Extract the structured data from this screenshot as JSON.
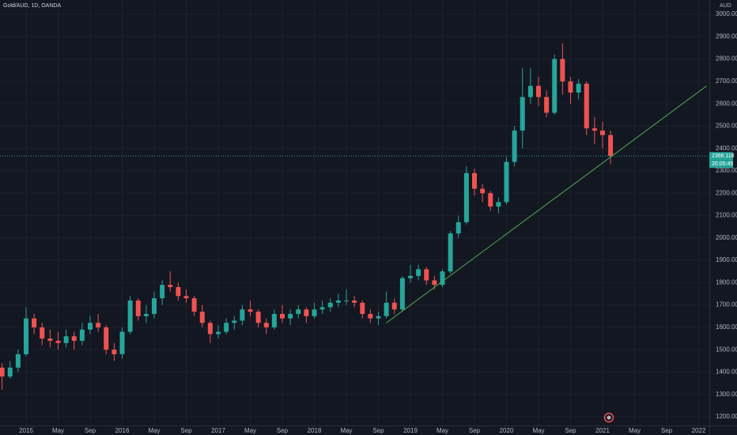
{
  "chart_data": {
    "type": "candlestick",
    "title": "Gold/AUD, 1D, OANDA",
    "currency": "AUD",
    "up_color": "#26a69a",
    "down_color": "#ef5350",
    "x": [
      "2014-10",
      "2014-11",
      "2014-12",
      "2015-01",
      "2015-02",
      "2015-03",
      "2015-04",
      "2015-05",
      "2015-06",
      "2015-07",
      "2015-08",
      "2015-09",
      "2015-10",
      "2015-11",
      "2015-12",
      "2016-01",
      "2016-02",
      "2016-03",
      "2016-04",
      "2016-05",
      "2016-06",
      "2016-07",
      "2016-08",
      "2016-09",
      "2016-10",
      "2016-11",
      "2016-12",
      "2017-01",
      "2017-02",
      "2017-03",
      "2017-04",
      "2017-05",
      "2017-06",
      "2017-07",
      "2017-08",
      "2017-09",
      "2017-10",
      "2017-11",
      "2017-12",
      "2018-01",
      "2018-02",
      "2018-03",
      "2018-04",
      "2018-05",
      "2018-06",
      "2018-07",
      "2018-08",
      "2018-09",
      "2018-10",
      "2018-11",
      "2018-12",
      "2019-01",
      "2019-02",
      "2019-03",
      "2019-04",
      "2019-05",
      "2019-06",
      "2019-07",
      "2019-08",
      "2019-09",
      "2019-10",
      "2019-11",
      "2019-12",
      "2020-01",
      "2020-02",
      "2020-03",
      "2020-04",
      "2020-05",
      "2020-06",
      "2020-07",
      "2020-08",
      "2020-09",
      "2020-10",
      "2020-11",
      "2020-12",
      "2021-01",
      "2021-02"
    ],
    "open": [
      1420,
      1380,
      1420,
      1480,
      1640,
      1600,
      1550,
      1540,
      1530,
      1560,
      1540,
      1590,
      1620,
      1600,
      1500,
      1480,
      1580,
      1720,
      1650,
      1660,
      1730,
      1790,
      1780,
      1740,
      1730,
      1670,
      1620,
      1570,
      1580,
      1620,
      1630,
      1680,
      1670,
      1620,
      1600,
      1660,
      1640,
      1660,
      1680,
      1650,
      1680,
      1690,
      1710,
      1720,
      1720,
      1710,
      1660,
      1640,
      1650,
      1710,
      1680,
      1820,
      1830,
      1860,
      1810,
      1790,
      1850,
      2020,
      2070,
      2290,
      2220,
      2200,
      2140,
      2160,
      2340,
      2480,
      2630,
      2680,
      2630,
      2560,
      2800,
      2700,
      2650,
      2690,
      2490,
      2480,
      2460
    ],
    "high": [
      1440,
      1450,
      1500,
      1690,
      1660,
      1620,
      1590,
      1580,
      1590,
      1580,
      1620,
      1650,
      1660,
      1610,
      1530,
      1600,
      1740,
      1730,
      1700,
      1760,
      1810,
      1850,
      1800,
      1770,
      1740,
      1700,
      1630,
      1610,
      1640,
      1650,
      1700,
      1720,
      1680,
      1640,
      1680,
      1700,
      1680,
      1700,
      1690,
      1710,
      1720,
      1730,
      1750,
      1770,
      1740,
      1720,
      1680,
      1670,
      1760,
      1730,
      1830,
      1880,
      1880,
      1870,
      1830,
      1860,
      2030,
      2100,
      2320,
      2310,
      2240,
      2210,
      2180,
      2360,
      2500,
      2760,
      2760,
      2720,
      2660,
      2820,
      2870,
      2720,
      2710,
      2700,
      2540,
      2520,
      2480
    ],
    "low": [
      1320,
      1370,
      1400,
      1470,
      1570,
      1520,
      1510,
      1500,
      1510,
      1500,
      1520,
      1570,
      1580,
      1480,
      1450,
      1460,
      1570,
      1630,
      1620,
      1640,
      1700,
      1760,
      1720,
      1710,
      1650,
      1600,
      1530,
      1550,
      1570,
      1590,
      1610,
      1650,
      1600,
      1570,
      1590,
      1620,
      1610,
      1640,
      1620,
      1640,
      1660,
      1670,
      1690,
      1700,
      1690,
      1640,
      1620,
      1610,
      1640,
      1660,
      1670,
      1800,
      1810,
      1790,
      1770,
      1780,
      1840,
      2000,
      2060,
      2190,
      2160,
      2120,
      2110,
      2150,
      2320,
      2400,
      2600,
      2590,
      2540,
      2550,
      2640,
      2600,
      2620,
      2460,
      2420,
      2400,
      2330
    ],
    "close": [
      1380,
      1420,
      1480,
      1640,
      1600,
      1550,
      1540,
      1530,
      1560,
      1540,
      1590,
      1620,
      1600,
      1500,
      1480,
      1580,
      1720,
      1650,
      1660,
      1730,
      1790,
      1780,
      1740,
      1730,
      1670,
      1620,
      1570,
      1580,
      1620,
      1630,
      1680,
      1670,
      1620,
      1600,
      1660,
      1640,
      1660,
      1680,
      1650,
      1680,
      1690,
      1710,
      1720,
      1720,
      1710,
      1660,
      1640,
      1650,
      1710,
      1680,
      1820,
      1830,
      1860,
      1810,
      1790,
      1850,
      2020,
      2070,
      2290,
      2220,
      2200,
      2140,
      2160,
      2340,
      2480,
      2630,
      2680,
      2630,
      2560,
      2800,
      2700,
      2650,
      2690,
      2490,
      2480,
      2460,
      2366.118
    ],
    "last_price": {
      "value": 2366.118,
      "countdown": "20:05:45"
    },
    "trendline": {
      "color": "#4caf50",
      "points": [
        {
          "x": "2018-10",
          "y": 1620
        },
        {
          "x": "2022-02",
          "y": 2680
        }
      ]
    },
    "ylim": [
      1161,
      3064
    ],
    "yticks": [
      {
        "value": 1200,
        "label": "1200.000"
      },
      {
        "value": 1300,
        "label": "1300.000"
      },
      {
        "value": 1400,
        "label": "1400.000"
      },
      {
        "value": 1500,
        "label": "1500.000"
      },
      {
        "value": 1600,
        "label": "1600.000"
      },
      {
        "value": 1700,
        "label": "1700.000"
      },
      {
        "value": 1800,
        "label": "1800.000"
      },
      {
        "value": 1900,
        "label": "1900.000"
      },
      {
        "value": 2000,
        "label": "2000.000"
      },
      {
        "value": 2100,
        "label": "2100.000"
      },
      {
        "value": 2200,
        "label": "2200.000"
      },
      {
        "value": 2300,
        "label": "2300.000"
      },
      {
        "value": 2400,
        "label": "2400.000"
      },
      {
        "value": 2500,
        "label": "2500.000"
      },
      {
        "value": 2600,
        "label": "2600.000"
      },
      {
        "value": 2700,
        "label": "2700.000"
      },
      {
        "value": 2800,
        "label": "2800.000"
      },
      {
        "value": 2900,
        "label": "2900.000"
      },
      {
        "value": 3000,
        "label": "3000.000"
      }
    ],
    "xticks": [
      {
        "value": "2015-01",
        "label": "2015"
      },
      {
        "value": "2015-05",
        "label": "May"
      },
      {
        "value": "2015-09",
        "label": "Sep"
      },
      {
        "value": "2016-01",
        "label": "2016"
      },
      {
        "value": "2016-05",
        "label": "May"
      },
      {
        "value": "2016-09",
        "label": "Sep"
      },
      {
        "value": "2017-01",
        "label": "2017"
      },
      {
        "value": "2017-05",
        "label": "May"
      },
      {
        "value": "2017-09",
        "label": "Sep"
      },
      {
        "value": "2018-01",
        "label": "2018"
      },
      {
        "value": "2018-05",
        "label": "May"
      },
      {
        "value": "2018-09",
        "label": "Sep"
      },
      {
        "value": "2019-01",
        "label": "2019"
      },
      {
        "value": "2019-05",
        "label": "May"
      },
      {
        "value": "2019-09",
        "label": "Sep"
      },
      {
        "value": "2020-01",
        "label": "2020"
      },
      {
        "value": "2020-05",
        "label": "May"
      },
      {
        "value": "2020-09",
        "label": "Sep"
      },
      {
        "value": "2021-01",
        "label": "2021"
      },
      {
        "value": "2021-05",
        "label": "May"
      },
      {
        "value": "2021-09",
        "label": "Sep"
      },
      {
        "value": "2022-01",
        "label": "2022"
      }
    ],
    "grid": true
  }
}
